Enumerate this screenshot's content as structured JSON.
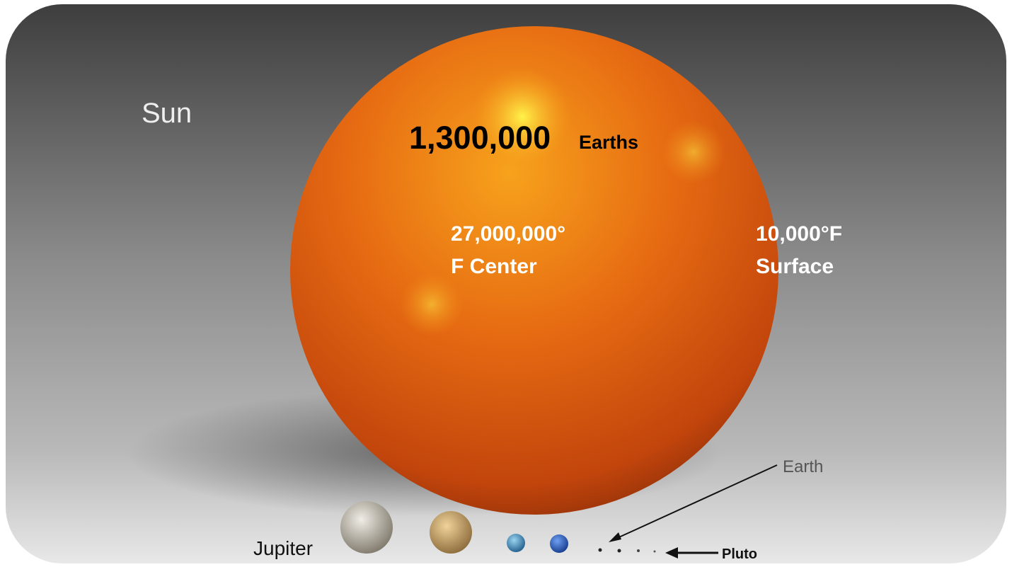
{
  "labels": {
    "sun": "Sun",
    "earth_count": "1,300,000",
    "earth_unit": "Earths",
    "center_temp": [
      "27,000,000°",
      "F Center"
    ],
    "surface_temp": [
      "10,000°F",
      "Surface"
    ],
    "earth": "Earth",
    "jupiter": "Jupiter",
    "pluto": "Pluto"
  }
}
